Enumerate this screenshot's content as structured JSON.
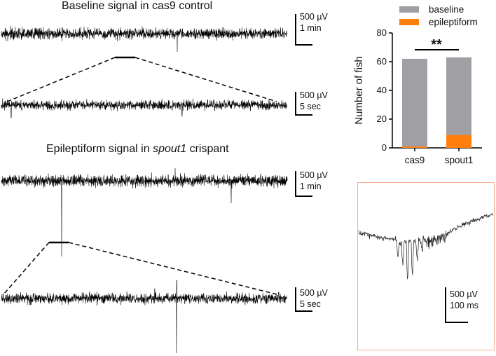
{
  "panels": {
    "baseline_title": "Baseline signal in cas9 control",
    "epileptiform_title_pre": "Epileptiform signal in ",
    "epileptiform_title_gene": "spout1",
    "epileptiform_title_post": " crispant"
  },
  "scalebars": {
    "b1_amp": "500 µV",
    "b1_time": "1 min",
    "b2_amp": "500 µV",
    "b2_time": "5 sec",
    "e1_amp": "500 µV",
    "e1_time": "1 min",
    "e2_amp": "500 µV",
    "e2_time": "5 sec",
    "inset_amp": "500 µV",
    "inset_time": "100 ms"
  },
  "chart_data": {
    "type": "bar",
    "stacked": true,
    "categories": [
      "cas9",
      "spout1"
    ],
    "series": [
      {
        "name": "baseline",
        "color": "#a0a0a4",
        "values": [
          61,
          54
        ]
      },
      {
        "name": "epileptiform",
        "color": "#ff7f0e",
        "values": [
          1,
          9
        ]
      }
    ],
    "ylabel": "Number of fish",
    "ylim": [
      0,
      80
    ],
    "yticks": [
      0,
      20,
      40,
      60,
      80
    ],
    "legend_position": "top",
    "significance": "**",
    "grid": false
  }
}
